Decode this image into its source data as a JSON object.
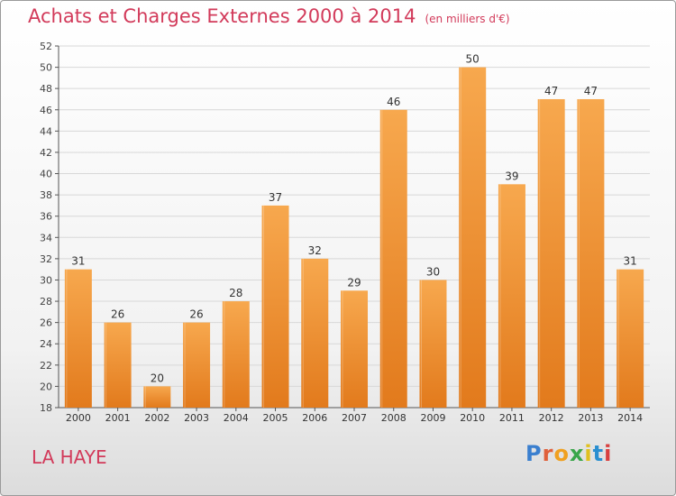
{
  "header": {
    "title": "Achats et Charges Externes 2000 à 2014",
    "unit": "(en milliers d'€)"
  },
  "footer": {
    "place": "LA HAYE",
    "logo": "Proxiti"
  },
  "colors": {
    "title": "#d23a5a",
    "bar_top": "#f7a84e",
    "bar_bottom": "#e27a1c",
    "grid": "#d8d8d8"
  },
  "chart_data": {
    "type": "bar",
    "title": "Achats et Charges Externes 2000 à 2014",
    "xlabel": "",
    "ylabel": "",
    "categories": [
      "2000",
      "2001",
      "2002",
      "2003",
      "2004",
      "2005",
      "2006",
      "2007",
      "2008",
      "2009",
      "2010",
      "2011",
      "2012",
      "2013",
      "2014"
    ],
    "values": [
      31,
      26,
      20,
      26,
      28,
      37,
      32,
      29,
      46,
      30,
      50,
      39,
      47,
      47,
      31
    ],
    "ylim": [
      18,
      52
    ],
    "yticks": [
      18,
      20,
      22,
      24,
      26,
      28,
      30,
      32,
      34,
      36,
      38,
      40,
      42,
      44,
      46,
      48,
      50,
      52
    ],
    "grid": true,
    "legend": "none"
  }
}
